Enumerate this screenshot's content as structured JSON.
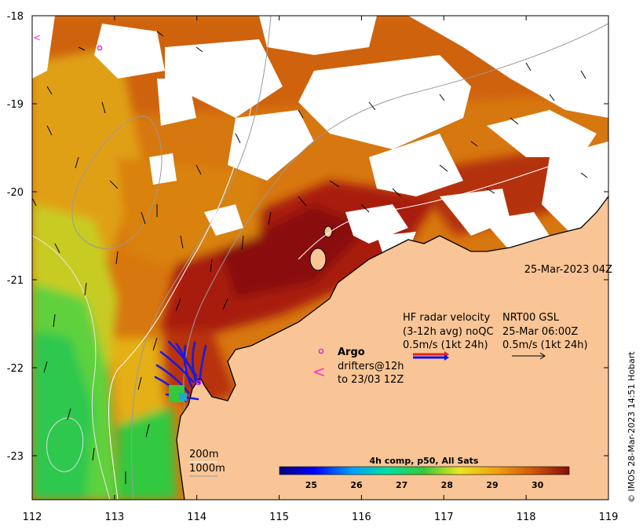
{
  "map": {
    "x_ticks": [
      "112",
      "113",
      "114",
      "115",
      "116",
      "117",
      "118",
      "119"
    ],
    "y_ticks": [
      "-18",
      "-19",
      "-20",
      "-21",
      "-22",
      "-23"
    ],
    "lon_range": [
      112,
      119
    ],
    "lat_range": [
      -23.5,
      -18
    ]
  },
  "timestamp": "25-Mar-2023 04Z",
  "legend": {
    "hf_title": "HF radar velocity",
    "hf_sub": "(3-12h avg) noQC",
    "hf_scale": "0.5m/s (1kt 24h)",
    "nrt_title": "NRT00 GSL",
    "nrt_sub": "25-Mar 06:00Z",
    "nrt_scale": "0.5m/s (1kt 24h)",
    "argo_label": "Argo",
    "drifters_label": "drifters@12h",
    "drifters_sub": "to 23/03 12Z"
  },
  "contours": {
    "c200": "200m",
    "c1000": "1000m"
  },
  "colorbar": {
    "title": "4h comp, p50, All Sats",
    "ticks": [
      "25",
      "26",
      "27",
      "28",
      "29",
      "30"
    ],
    "range": [
      24.3,
      30.7
    ]
  },
  "credit": "© IMOS 28-Mar-2023 14:51 Hobart",
  "colors": {
    "land": "#f9c596",
    "hf_arrow_red": "#e8231a",
    "hf_arrow_blue": "#1414e6",
    "argo": "#e020e0",
    "drifter": "#ff2bd0",
    "radar_track": "#1a1ae0"
  }
}
